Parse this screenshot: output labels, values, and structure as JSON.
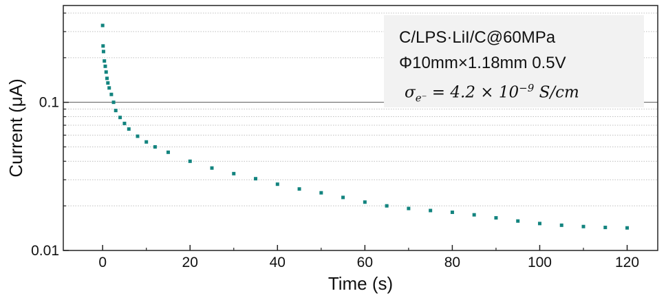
{
  "chart_data": {
    "type": "scatter",
    "title": "",
    "xlabel": "Time (s)",
    "ylabel": "Current (μA)",
    "xlim": [
      -9,
      127
    ],
    "ylim": [
      0.01,
      0.45
    ],
    "yscale": "log",
    "x_ticks": [
      0,
      20,
      40,
      60,
      80,
      100,
      120
    ],
    "x_tick_labels": [
      "0",
      "20",
      "40",
      "60",
      "80",
      "100",
      "120"
    ],
    "y_ticks": [
      0.01,
      0.1
    ],
    "y_tick_labels": [
      "0.01",
      "0.1"
    ],
    "grid": "horizontal dotted minor gridlines; solid line at 0.1",
    "marker_color": "#13847f",
    "series": [
      {
        "x": [
          0,
          0.1,
          0.2,
          0.4,
          0.6,
          0.8,
          1.0,
          1.2,
          1.5,
          2.0,
          2.5,
          3,
          4,
          5,
          6,
          8,
          10,
          12,
          15,
          20,
          25,
          30,
          35,
          40,
          45,
          50,
          55,
          60,
          65,
          70,
          75,
          80,
          85,
          90,
          95,
          100,
          105,
          110,
          115,
          120
        ],
        "y": [
          0.33,
          0.24,
          0.22,
          0.19,
          0.175,
          0.16,
          0.145,
          0.135,
          0.125,
          0.113,
          0.1,
          0.088,
          0.079,
          0.072,
          0.066,
          0.059,
          0.054,
          0.05,
          0.046,
          0.04,
          0.036,
          0.033,
          0.0305,
          0.028,
          0.026,
          0.0245,
          0.0228,
          0.0212,
          0.02,
          0.0192,
          0.0186,
          0.0181,
          0.0174,
          0.0166,
          0.0158,
          0.0152,
          0.0148,
          0.0145,
          0.0143,
          0.0142
        ]
      }
    ],
    "annotations": {
      "line1": "C/LPS·LiI/C@60MPa",
      "line2": "Φ10mm×1.18mm 0.5V",
      "formula_symbol": "σ",
      "formula_sub": "e⁻",
      "formula_rhs": " = 4.2 × 10",
      "formula_exp": "−9",
      "formula_unit": " S/cm"
    }
  }
}
